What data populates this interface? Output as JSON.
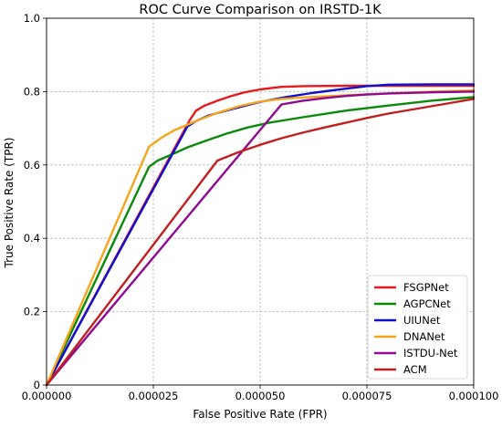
{
  "chart_data": {
    "type": "line",
    "title": "ROC Curve Comparison on IRSTD-1K",
    "xlabel": "False Positive Rate (FPR)",
    "ylabel": "True Positive Rate (TPR)",
    "xlim": [
      0,
      0.0001
    ],
    "ylim": [
      0,
      1.0
    ],
    "x_ticks": [
      0,
      2.5e-05,
      5e-05,
      7.5e-05,
      0.0001
    ],
    "x_tick_labels": [
      "0.000000",
      "0.000025",
      "0.000050",
      "0.000075",
      "0.000100"
    ],
    "y_ticks": [
      0,
      0.2,
      0.4,
      0.6,
      0.8,
      1.0
    ],
    "y_tick_labels": [
      "0",
      "0.2",
      "0.4",
      "0.6",
      "0.8",
      "1.0"
    ],
    "grid": true,
    "legend_position": "bottom-right",
    "series": [
      {
        "name": "FSGPNet",
        "color": "#e41a1c",
        "x": [
          0,
          3.35e-05,
          3.5e-05,
          3.7e-05,
          4e-05,
          4.3e-05,
          4.6e-05,
          5e-05,
          5.5e-05,
          6e-05,
          7e-05,
          8e-05,
          9e-05,
          0.0001
        ],
        "y": [
          0,
          0.722,
          0.748,
          0.762,
          0.775,
          0.787,
          0.797,
          0.806,
          0.813,
          0.815,
          0.816,
          0.816,
          0.816,
          0.816
        ]
      },
      {
        "name": "AGPCNet",
        "color": "#0a8a0a",
        "x": [
          0,
          2.4e-05,
          2.6e-05,
          2.8e-05,
          3e-05,
          3.3e-05,
          3.7e-05,
          4.2e-05,
          4.7e-05,
          5.2e-05,
          6e-05,
          7e-05,
          8e-05,
          9e-05,
          0.0001
        ],
        "y": [
          0,
          0.595,
          0.612,
          0.622,
          0.632,
          0.648,
          0.665,
          0.685,
          0.702,
          0.715,
          0.73,
          0.748,
          0.762,
          0.775,
          0.785
        ]
      },
      {
        "name": "UIUNet",
        "color": "#1010d0",
        "x": [
          0,
          3.3e-05,
          3.5e-05,
          3.8e-05,
          4.2e-05,
          4.6e-05,
          5e-05,
          5.6e-05,
          6.2e-05,
          7e-05,
          7.5e-05,
          8e-05,
          9e-05,
          0.0001
        ],
        "y": [
          0,
          0.705,
          0.72,
          0.735,
          0.748,
          0.76,
          0.772,
          0.785,
          0.796,
          0.808,
          0.815,
          0.819,
          0.82,
          0.82
        ]
      },
      {
        "name": "DNANet",
        "color": "#f5a51d",
        "x": [
          0,
          2.4e-05,
          2.7e-05,
          3e-05,
          3.5e-05,
          4e-05,
          4.5e-05,
          5e-05,
          5.5e-05,
          6e-05,
          7e-05,
          8e-05,
          9e-05,
          0.0001
        ],
        "y": [
          0,
          0.65,
          0.675,
          0.695,
          0.72,
          0.742,
          0.76,
          0.773,
          0.78,
          0.784,
          0.79,
          0.795,
          0.8,
          0.803
        ]
      },
      {
        "name": "ISTDU-Net",
        "color": "#900a90",
        "x": [
          0,
          5.5e-05,
          6e-05,
          6.5e-05,
          7e-05,
          7.5e-05,
          8e-05,
          9e-05,
          0.0001
        ],
        "y": [
          0,
          0.765,
          0.775,
          0.782,
          0.788,
          0.792,
          0.795,
          0.798,
          0.8
        ]
      },
      {
        "name": "ACM",
        "color": "#c01f1f",
        "x": [
          0,
          4e-05,
          4.5e-05,
          5e-05,
          5.5e-05,
          6e-05,
          6.5e-05,
          7e-05,
          7.5e-05,
          8e-05,
          8.5e-05,
          9e-05,
          9.5e-05,
          0.0001
        ],
        "y": [
          0,
          0.612,
          0.635,
          0.655,
          0.673,
          0.688,
          0.702,
          0.715,
          0.728,
          0.74,
          0.75,
          0.76,
          0.77,
          0.78
        ]
      }
    ]
  }
}
